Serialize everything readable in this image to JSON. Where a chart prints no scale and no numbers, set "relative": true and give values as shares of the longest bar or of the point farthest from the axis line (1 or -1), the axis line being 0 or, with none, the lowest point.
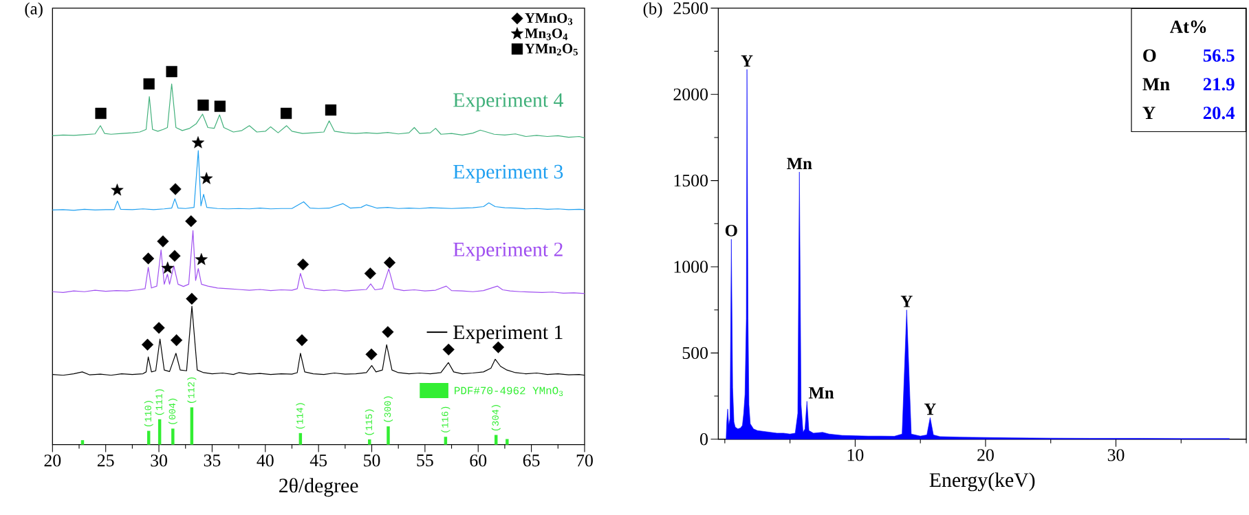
{
  "chart_data": [
    {
      "type": "line",
      "title": "(a)",
      "xlabel": "2θ/degree",
      "relative": true,
      "legend": "top right",
      "xlim": [
        20,
        70
      ],
      "xticks": [
        20,
        {
          "value": 22.5,
          "label": null
        },
        25,
        {
          "value": 27.5,
          "label": null
        },
        30,
        {
          "value": 32.5,
          "label": null
        },
        35,
        {
          "value": 37.5,
          "label": null
        },
        40,
        {
          "value": 42.5,
          "label": null
        },
        45,
        {
          "value": 47.5,
          "label": null
        },
        50,
        {
          "value": 52.5,
          "label": null
        },
        55,
        {
          "value": 57.5,
          "label": null
        },
        60,
        {
          "value": 62.5,
          "label": null
        },
        65,
        {
          "value": 67.5,
          "label": null
        },
        70
      ],
      "series": [
        {
          "name": "Experiment 1",
          "color": "#000000",
          "x": [
            20,
            21,
            22,
            22.8,
            23.5,
            24.5,
            25.5,
            26.5,
            27.5,
            28.5,
            28.8,
            29.0,
            29.3,
            29.7,
            30.1,
            30.5,
            31.0,
            31.6,
            32.0,
            32.6,
            33.1,
            33.6,
            34.2,
            35,
            36,
            37,
            37.5,
            38.5,
            39.5,
            40.5,
            41.5,
            42.5,
            43.0,
            43.3,
            43.7,
            44.5,
            45.5,
            46.5,
            47.5,
            48.5,
            49.5,
            50.0,
            50.4,
            51.0,
            51.4,
            51.9,
            52.5,
            53.5,
            54.5,
            55.5,
            56.5,
            57.2,
            57.7,
            58.5,
            59.5,
            60.5,
            61.2,
            61.6,
            62.1,
            62.7,
            63.5,
            64.5,
            65.5,
            66.5,
            67.5,
            68.5,
            69.5,
            70
          ],
          "values": [
            0.188,
            0.186,
            0.19,
            0.195,
            0.187,
            0.189,
            0.186,
            0.19,
            0.188,
            0.19,
            0.195,
            0.235,
            0.195,
            0.198,
            0.283,
            0.2,
            0.196,
            0.245,
            0.2,
            0.198,
            0.371,
            0.2,
            0.193,
            0.19,
            0.192,
            0.188,
            0.193,
            0.189,
            0.191,
            0.188,
            0.19,
            0.189,
            0.193,
            0.245,
            0.195,
            0.19,
            0.188,
            0.192,
            0.189,
            0.19,
            0.193,
            0.212,
            0.195,
            0.2,
            0.268,
            0.2,
            0.193,
            0.19,
            0.192,
            0.19,
            0.193,
            0.22,
            0.195,
            0.19,
            0.192,
            0.195,
            0.205,
            0.229,
            0.21,
            0.2,
            0.193,
            0.19,
            0.192,
            0.188,
            0.19,
            0.187,
            0.188,
            0.186
          ]
        },
        {
          "name": "Experiment 2",
          "color": "#9f4ff0",
          "x": [
            20,
            21,
            22,
            23,
            24,
            25,
            26,
            27,
            28,
            28.7,
            29.0,
            29.3,
            29.8,
            30.2,
            30.5,
            30.8,
            31.0,
            31.4,
            31.8,
            32.3,
            32.8,
            33.2,
            33.45,
            33.7,
            34.0,
            34.6,
            35.5,
            36.5,
            37.5,
            38.5,
            39.5,
            40.5,
            41.5,
            42.5,
            43.0,
            43.3,
            43.7,
            44.5,
            45.5,
            46.5,
            47.5,
            48.5,
            49.5,
            49.9,
            50.3,
            51.0,
            51.6,
            52.1,
            53,
            54,
            55,
            56,
            57.0,
            57.5,
            58.5,
            59.5,
            60.5,
            61.8,
            62.3,
            63,
            64,
            65,
            66,
            67,
            68,
            69,
            70
          ],
          "values": [
            0.41,
            0.408,
            0.412,
            0.41,
            0.414,
            0.411,
            0.413,
            0.412,
            0.415,
            0.418,
            0.475,
            0.42,
            0.425,
            0.522,
            0.43,
            0.457,
            0.43,
            0.479,
            0.43,
            0.424,
            0.43,
            0.574,
            0.44,
            0.472,
            0.43,
            0.425,
            0.42,
            0.418,
            0.416,
            0.414,
            0.416,
            0.413,
            0.415,
            0.414,
            0.418,
            0.459,
            0.42,
            0.416,
            0.413,
            0.415,
            0.412,
            0.414,
            0.416,
            0.431,
            0.415,
            0.418,
            0.471,
            0.418,
            0.413,
            0.415,
            0.412,
            0.414,
            0.425,
            0.413,
            0.412,
            0.41,
            0.413,
            0.425,
            0.415,
            0.412,
            0.41,
            0.409,
            0.408,
            0.409,
            0.406,
            0.407,
            0.405
          ]
        },
        {
          "name": "Experiment 3",
          "color": "#1e9ff0",
          "x": [
            20,
            21,
            22,
            23,
            24,
            25,
            25.8,
            26.1,
            26.4,
            27.5,
            28.5,
            29.5,
            30.5,
            31.2,
            31.5,
            31.8,
            32.5,
            33.3,
            33.7,
            33.95,
            34.2,
            34.5,
            35.5,
            36.5,
            37.5,
            38.5,
            39.5,
            40.5,
            41.5,
            42.5,
            43.6,
            44.2,
            45,
            46,
            47.3,
            48,
            49,
            49.5,
            50.5,
            51.5,
            52.5,
            53.5,
            54.5,
            55.5,
            56.5,
            57.5,
            58.5,
            59.5,
            60.5,
            61.0,
            61.6,
            62.5,
            63.5,
            64.5,
            65.5,
            66.5,
            67.5,
            68.5,
            69.5,
            70
          ],
          "values": [
            0.629,
            0.63,
            0.628,
            0.631,
            0.629,
            0.63,
            0.63,
            0.653,
            0.631,
            0.63,
            0.632,
            0.63,
            0.632,
            0.634,
            0.659,
            0.634,
            0.633,
            0.636,
            0.788,
            0.64,
            0.671,
            0.636,
            0.633,
            0.632,
            0.633,
            0.632,
            0.634,
            0.632,
            0.633,
            0.633,
            0.651,
            0.634,
            0.633,
            0.634,
            0.646,
            0.634,
            0.636,
            0.643,
            0.634,
            0.636,
            0.633,
            0.634,
            0.633,
            0.635,
            0.634,
            0.633,
            0.634,
            0.635,
            0.638,
            0.648,
            0.638,
            0.635,
            0.634,
            0.632,
            0.633,
            0.631,
            0.632,
            0.63,
            0.631,
            0.63
          ]
        },
        {
          "name": "Experiment 4",
          "color": "#40b07a",
          "x": [
            20,
            21,
            22,
            23,
            24,
            24.5,
            24.9,
            25.5,
            26.5,
            27.5,
            28.2,
            28.8,
            29.1,
            29.4,
            29.9,
            30.4,
            30.8,
            31.2,
            31.6,
            32.2,
            32.9,
            33.5,
            34.1,
            34.6,
            35.2,
            35.7,
            36.1,
            37,
            37.8,
            38.5,
            39.2,
            40,
            40.5,
            41.2,
            42.0,
            42.5,
            43.5,
            44.5,
            45.5,
            46.0,
            46.5,
            47.5,
            48.5,
            49.5,
            50.5,
            51.5,
            52.5,
            53.5,
            54.0,
            54.5,
            55.5,
            56.0,
            56.5,
            57.5,
            58.5,
            59.5,
            60.2,
            60.8,
            61.5,
            62.5,
            63.5,
            64.5,
            65.5,
            66.5,
            67.5,
            68.5,
            69.5,
            70
          ],
          "values": [
            0.828,
            0.83,
            0.829,
            0.831,
            0.833,
            0.855,
            0.834,
            0.832,
            0.834,
            0.836,
            0.838,
            0.845,
            0.933,
            0.845,
            0.84,
            0.845,
            0.85,
            0.967,
            0.85,
            0.842,
            0.848,
            0.86,
            0.886,
            0.85,
            0.848,
            0.884,
            0.85,
            0.838,
            0.842,
            0.855,
            0.838,
            0.84,
            0.852,
            0.836,
            0.855,
            0.84,
            0.834,
            0.836,
            0.838,
            0.868,
            0.84,
            0.836,
            0.834,
            0.836,
            0.834,
            0.837,
            0.833,
            0.836,
            0.85,
            0.834,
            0.836,
            0.848,
            0.832,
            0.834,
            0.83,
            0.835,
            0.843,
            0.838,
            0.832,
            0.83,
            0.833,
            0.826,
            0.829,
            0.826,
            0.828,
            0.824,
            0.826,
            0.822
          ]
        },
        {
          "name": "PDF#70-4962 YMnO$_{3}$",
          "type": "bar",
          "color": "#33ee33",
          "x": [
            22.82,
            29.04,
            30.07,
            31.31,
            33.09,
            43.3,
            49.79,
            51.55,
            56.94,
            61.68,
            62.72
          ],
          "values": [
            0.012,
            0.037,
            0.068,
            0.043,
            0.1,
            0.031,
            0.014,
            0.049,
            0.021,
            0.026,
            0.015
          ]
        },
        {
          "name": "YMnO$_{3}$",
          "type": "scatter",
          "marker": "diamond",
          "color": "#000000",
          "x": [
            28.93,
            30.0,
            31.65,
            33.09,
            43.44,
            49.97,
            51.51,
            57.22,
            61.89,
            29.0,
            30.38,
            31.48,
            33.02,
            43.54,
            49.86,
            51.68,
            31.55
          ],
          "values": [
            0.268,
            0.313,
            0.28,
            0.391,
            0.28,
            0.242,
            0.302,
            0.255,
            0.261,
            0.499,
            0.545,
            0.506,
            0.599,
            0.483,
            0.459,
            0.488,
            0.685
          ]
        },
        {
          "name": "Mn$_{3}$O$_{4}$",
          "type": "scatter",
          "marker": "star",
          "color": "#000000",
          "x": [
            30.82,
            33.99,
            26.08,
            33.68,
            34.47
          ],
          "values": [
            0.473,
            0.496,
            0.682,
            0.809,
            0.713
          ]
        },
        {
          "name": "YMn$_{2}$O$_{5}$",
          "type": "scatter",
          "marker": "square",
          "color": "#000000",
          "x": [
            24.54,
            29.07,
            31.2,
            34.16,
            35.74,
            41.96,
            46.15
          ],
          "values": [
            0.888,
            0.967,
            1,
            0.91,
            0.907,
            0.888,
            0.897
          ]
        }
      ],
      "annotations": [
        {
          "text": "(110)",
          "x": 29.04,
          "y": 0.037
        },
        {
          "text": "(111)",
          "x": 30.07,
          "y": 0.068
        },
        {
          "text": "(004)",
          "x": 31.31,
          "y": 0.043
        },
        {
          "text": "(112)",
          "x": 33.09,
          "y": 0.1
        },
        {
          "text": "(114)",
          "x": 43.3,
          "y": 0.031
        },
        {
          "text": "(115)",
          "x": 49.79,
          "y": 0.014
        },
        {
          "text": "(300)",
          "x": 51.55,
          "y": 0.049
        },
        {
          "text": "(116)",
          "x": 56.94,
          "y": 0.021
        },
        {
          "text": "(304)",
          "x": 61.68,
          "y": 0.026
        }
      ]
    },
    {
      "type": "area",
      "title": "(b)",
      "xlabel": "Energy(keV)",
      "color": "#0000ff",
      "xlim": [
        -0.5,
        40
      ],
      "ylim": [
        0,
        2500
      ],
      "xticks": [
        {
          "value": 0,
          "label": null
        },
        {
          "value": 5,
          "label": null
        },
        10,
        {
          "value": 15,
          "label": null
        },
        20,
        {
          "value": 25,
          "label": null
        },
        30,
        {
          "value": 35,
          "label": null
        },
        {
          "value": 40,
          "label": null
        }
      ],
      "yticks": [
        0,
        {
          "value": 250,
          "label": null
        },
        500,
        {
          "value": 750,
          "label": null
        },
        1000,
        {
          "value": 1250,
          "label": null
        },
        1500,
        {
          "value": 1750,
          "label": null
        },
        2000,
        {
          "value": 2250,
          "label": null
        },
        2500
      ],
      "x": [
        0.1,
        0.15,
        0.22,
        0.3,
        0.4,
        0.5,
        0.6,
        0.7,
        0.8,
        1.0,
        1.2,
        1.35,
        1.45,
        1.55,
        1.65,
        1.7,
        1.78,
        1.85,
        1.95,
        2.2,
        2.5,
        3,
        3.5,
        4,
        4.5,
        5,
        5.4,
        5.6,
        5.72,
        5.85,
        6.0,
        6.15,
        6.3,
        6.45,
        6.8,
        7.5,
        8,
        9,
        10,
        11,
        12,
        13,
        13.6,
        13.95,
        14.3,
        15,
        15.5,
        15.75,
        16.0,
        16.5,
        18,
        20,
        22,
        25,
        28,
        32,
        35,
        38.7
      ],
      "values": [
        0,
        100,
        175,
        80,
        120,
        1160,
        300,
        100,
        70,
        60,
        65,
        80,
        150,
        260,
        700,
        2145,
        700,
        200,
        90,
        60,
        50,
        45,
        40,
        35,
        35,
        30,
        35,
        150,
        1550,
        200,
        40,
        60,
        220,
        50,
        35,
        40,
        30,
        22,
        20,
        18,
        18,
        17,
        30,
        750,
        30,
        18,
        25,
        125,
        25,
        15,
        12,
        10,
        8,
        6,
        5,
        5,
        4,
        4
      ],
      "annotations": [
        {
          "text": "O",
          "x": 0.5,
          "y": 1160
        },
        {
          "text": "Y",
          "x": 1.7,
          "y": 2145
        },
        {
          "text": "Mn",
          "x": 5.72,
          "y": 1550
        },
        {
          "text": "Mn",
          "x": 6.3,
          "y": 220
        },
        {
          "text": "Y",
          "x": 13.95,
          "y": 750
        },
        {
          "text": "Y",
          "x": 15.75,
          "y": 125
        },
        "At%",
        "O",
        "56.5",
        "Mn",
        "21.9",
        "Y",
        "20.4"
      ]
    }
  ]
}
